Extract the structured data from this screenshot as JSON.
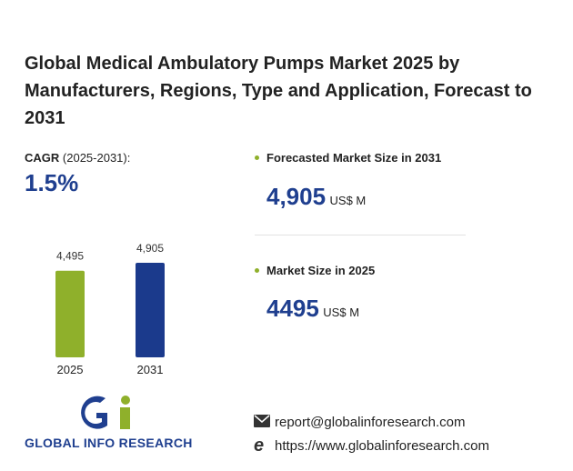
{
  "title": "Global Medical Ambulatory Pumps Market 2025 by Manufacturers, Regions, Type and Application, Forecast to 2031",
  "cagr": {
    "label": "CAGR",
    "period": "(2025-2031):",
    "value": "1.5%"
  },
  "forecast": {
    "label": "Forecasted Market Size in 2031",
    "value": "4,905",
    "unit": "US$ M"
  },
  "current": {
    "label": "Market Size in 2025",
    "value": "4495",
    "unit": "US$ M"
  },
  "chart_data": {
    "type": "bar",
    "categories": [
      "2025",
      "2031"
    ],
    "values": [
      4495,
      4905
    ],
    "value_labels": [
      "4,495",
      "4,905"
    ],
    "colors": [
      "#8fb02b",
      "#1b3a8c"
    ]
  },
  "logo": "GLOBAL INFO RESEARCH",
  "contact": {
    "email": "report@globalinforesearch.com",
    "website": "https://www.globalinforesearch.com"
  }
}
